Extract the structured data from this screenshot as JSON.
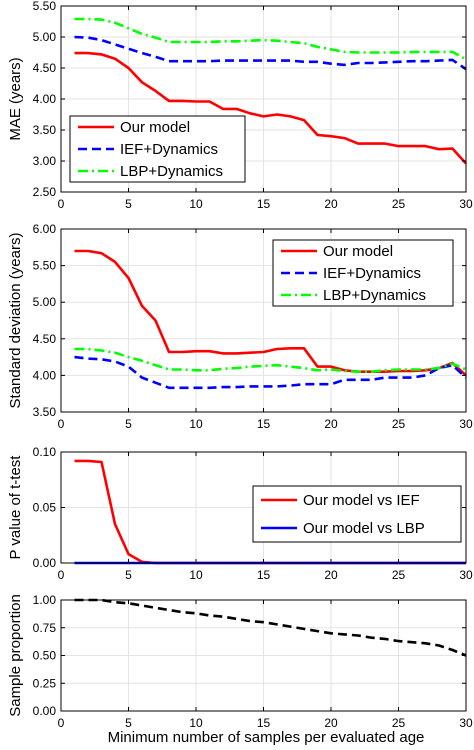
{
  "figure": {
    "xlabel": "Minimum number of samples per evaluated age"
  },
  "colors": {
    "our_model": "#ff0000",
    "ief": "#0000ff",
    "lbp": "#00ff00",
    "proportion": "#000000"
  },
  "chart_data": [
    {
      "type": "line",
      "ylabel": "MAE (years)",
      "xlim": [
        0,
        30
      ],
      "ylim": [
        2.5,
        5.5
      ],
      "xticks": [
        0,
        5,
        10,
        15,
        20,
        25,
        30
      ],
      "yticks": [
        2.5,
        3.0,
        3.5,
        4.0,
        4.5,
        5.0,
        5.5
      ],
      "ytick_labels": [
        "2.50",
        "3.00",
        "3.50",
        "4.00",
        "4.50",
        "5.00",
        "5.50"
      ],
      "grid": true,
      "legend_position": "bottom-left",
      "series": [
        {
          "name": "Our model",
          "color": "#ff0000",
          "style": "solid",
          "x": [
            1,
            2,
            3,
            4,
            5,
            6,
            7,
            8,
            9,
            10,
            11,
            12,
            13,
            14,
            15,
            16,
            17,
            18,
            19,
            20,
            21,
            22,
            23,
            24,
            25,
            26,
            27,
            28,
            29,
            30
          ],
          "values": [
            4.74,
            4.74,
            4.72,
            4.65,
            4.5,
            4.27,
            4.13,
            3.97,
            3.97,
            3.96,
            3.96,
            3.84,
            3.84,
            3.77,
            3.72,
            3.75,
            3.72,
            3.66,
            3.42,
            3.4,
            3.37,
            3.28,
            3.28,
            3.28,
            3.24,
            3.24,
            3.24,
            3.19,
            3.2,
            2.96
          ]
        },
        {
          "name": "IEF+Dynamics",
          "color": "#0000ff",
          "style": "dashed",
          "x": [
            1,
            2,
            3,
            4,
            5,
            6,
            7,
            8,
            9,
            10,
            11,
            12,
            13,
            14,
            15,
            16,
            17,
            18,
            19,
            20,
            21,
            22,
            23,
            24,
            25,
            26,
            27,
            28,
            29,
            30
          ],
          "values": [
            5.0,
            4.99,
            4.95,
            4.88,
            4.81,
            4.74,
            4.68,
            4.61,
            4.61,
            4.61,
            4.61,
            4.62,
            4.62,
            4.62,
            4.62,
            4.62,
            4.62,
            4.6,
            4.6,
            4.57,
            4.55,
            4.58,
            4.58,
            4.59,
            4.6,
            4.61,
            4.61,
            4.62,
            4.63,
            4.48
          ]
        },
        {
          "name": "LBP+Dynamics",
          "color": "#00ff00",
          "style": "dashdot",
          "x": [
            1,
            2,
            3,
            4,
            5,
            6,
            7,
            8,
            9,
            10,
            11,
            12,
            13,
            14,
            15,
            16,
            17,
            18,
            19,
            20,
            21,
            22,
            23,
            24,
            25,
            26,
            27,
            28,
            29,
            30
          ],
          "values": [
            5.29,
            5.29,
            5.28,
            5.23,
            5.14,
            5.05,
            4.99,
            4.92,
            4.92,
            4.92,
            4.92,
            4.93,
            4.93,
            4.94,
            4.95,
            4.94,
            4.92,
            4.9,
            4.84,
            4.8,
            4.76,
            4.75,
            4.75,
            4.75,
            4.75,
            4.76,
            4.76,
            4.76,
            4.76,
            4.64
          ]
        }
      ]
    },
    {
      "type": "line",
      "ylabel": "Standard deviation (years)",
      "xlim": [
        0,
        30
      ],
      "ylim": [
        3.5,
        6.0
      ],
      "xticks": [
        0,
        5,
        10,
        15,
        20,
        25,
        30
      ],
      "yticks": [
        3.5,
        4.0,
        4.5,
        5.0,
        5.5,
        6.0
      ],
      "ytick_labels": [
        "3.50",
        "4.00",
        "4.50",
        "5.00",
        "5.50",
        "6.00"
      ],
      "grid": true,
      "legend_position": "top-right",
      "series": [
        {
          "name": "Our model",
          "color": "#ff0000",
          "style": "solid",
          "x": [
            1,
            2,
            3,
            4,
            5,
            6,
            7,
            8,
            9,
            10,
            11,
            12,
            13,
            14,
            15,
            16,
            17,
            18,
            19,
            20,
            21,
            22,
            23,
            24,
            25,
            26,
            27,
            28,
            29,
            30
          ],
          "values": [
            5.7,
            5.7,
            5.67,
            5.55,
            5.33,
            4.95,
            4.75,
            4.32,
            4.32,
            4.33,
            4.33,
            4.3,
            4.3,
            4.31,
            4.32,
            4.36,
            4.37,
            4.37,
            4.12,
            4.12,
            4.07,
            4.05,
            4.05,
            4.05,
            4.06,
            4.06,
            4.07,
            4.1,
            4.17,
            4.0
          ]
        },
        {
          "name": "IEF+Dynamics",
          "color": "#0000ff",
          "style": "dashed",
          "x": [
            1,
            2,
            3,
            4,
            5,
            6,
            7,
            8,
            9,
            10,
            11,
            12,
            13,
            14,
            15,
            16,
            17,
            18,
            19,
            20,
            21,
            22,
            23,
            24,
            25,
            26,
            27,
            28,
            29,
            30
          ],
          "values": [
            4.25,
            4.23,
            4.22,
            4.19,
            4.12,
            3.97,
            3.9,
            3.83,
            3.83,
            3.83,
            3.83,
            3.84,
            3.84,
            3.85,
            3.85,
            3.85,
            3.86,
            3.88,
            3.88,
            3.88,
            3.94,
            3.94,
            3.94,
            3.97,
            3.97,
            3.97,
            4.0,
            4.1,
            4.14,
            3.97
          ]
        },
        {
          "name": "LBP+Dynamics",
          "color": "#00ff00",
          "style": "dashdot",
          "x": [
            1,
            2,
            3,
            4,
            5,
            6,
            7,
            8,
            9,
            10,
            11,
            12,
            13,
            14,
            15,
            16,
            17,
            18,
            19,
            20,
            21,
            22,
            23,
            24,
            25,
            26,
            27,
            28,
            29,
            30
          ],
          "values": [
            4.36,
            4.36,
            4.34,
            4.31,
            4.25,
            4.2,
            4.14,
            4.08,
            4.08,
            4.07,
            4.07,
            4.09,
            4.1,
            4.12,
            4.13,
            4.14,
            4.12,
            4.1,
            4.07,
            4.08,
            4.06,
            4.05,
            4.05,
            4.07,
            4.08,
            4.08,
            4.08,
            4.1,
            4.16,
            4.08
          ]
        }
      ]
    },
    {
      "type": "line",
      "ylabel": "P value of t-test",
      "xlim": [
        0,
        30
      ],
      "ylim": [
        0,
        0.1
      ],
      "xticks": [
        0,
        5,
        10,
        15,
        20,
        25,
        30
      ],
      "yticks": [
        0,
        0.05,
        0.1
      ],
      "ytick_labels": [
        "0.00",
        "0.05",
        "0.10"
      ],
      "grid": true,
      "legend_position": "top-right",
      "series": [
        {
          "name": "Our model vs IEF",
          "color": "#ff0000",
          "style": "solid",
          "x": [
            1,
            2,
            3,
            4,
            5,
            6,
            7,
            8,
            9,
            10,
            15,
            20,
            25,
            30
          ],
          "values": [
            0.092,
            0.092,
            0.091,
            0.035,
            0.008,
            0.001,
            0,
            0,
            0,
            0,
            0,
            0,
            0,
            0
          ]
        },
        {
          "name": "Our model vs LBP",
          "color": "#0000ff",
          "style": "solid",
          "x": [
            1,
            5,
            10,
            15,
            20,
            25,
            30
          ],
          "values": [
            0,
            0,
            0,
            0,
            0,
            0,
            0
          ]
        }
      ]
    },
    {
      "type": "line",
      "ylabel": "Sample proportion",
      "xlim": [
        0,
        30
      ],
      "ylim": [
        0,
        1.0
      ],
      "xticks": [
        0,
        5,
        10,
        15,
        20,
        25,
        30
      ],
      "xtick_labels": [
        "0",
        "5",
        "10",
        "15",
        "20",
        "25",
        "30"
      ],
      "yticks": [
        0,
        0.25,
        0.5,
        0.75,
        1.0
      ],
      "ytick_labels": [
        "0.00",
        "0.25",
        "0.50",
        "0.75",
        "1.00"
      ],
      "grid": true,
      "series": [
        {
          "color": "#000000",
          "style": "dashed",
          "x": [
            1,
            2,
            3,
            4,
            5,
            6,
            7,
            8,
            9,
            10,
            11,
            12,
            13,
            14,
            15,
            16,
            17,
            18,
            19,
            20,
            21,
            22,
            23,
            24,
            25,
            26,
            27,
            28,
            29,
            30
          ],
          "values": [
            1.0,
            1.0,
            1.0,
            0.98,
            0.97,
            0.95,
            0.93,
            0.91,
            0.89,
            0.88,
            0.86,
            0.85,
            0.83,
            0.81,
            0.8,
            0.78,
            0.76,
            0.74,
            0.72,
            0.7,
            0.69,
            0.68,
            0.66,
            0.65,
            0.63,
            0.62,
            0.61,
            0.59,
            0.55,
            0.5
          ]
        }
      ]
    }
  ]
}
